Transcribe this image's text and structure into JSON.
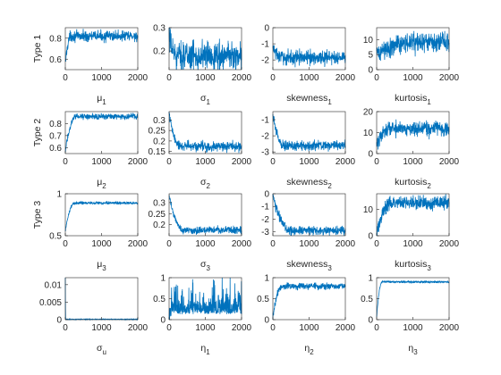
{
  "figure": {
    "trace_color": "#0072BD",
    "axes_color": "#262626"
  },
  "chart_data": [
    {
      "type": "line",
      "row_label": "Type 1",
      "xlabel": "μ",
      "xlabel_sub": "1",
      "x_ticks": [
        0,
        1000,
        2000
      ],
      "xlim": [
        0,
        2000
      ],
      "ylim": [
        0.5,
        0.9
      ],
      "y_ticks": [
        0.6,
        0.8
      ],
      "y_tick_labels": [
        "0.6",
        "0.8"
      ],
      "trace": {
        "start": 0.55,
        "level": 0.82,
        "burn_in": 150,
        "noise": 0.025
      }
    },
    {
      "type": "line",
      "xlabel": "σ",
      "xlabel_sub": "1",
      "x_ticks": [
        0,
        1000,
        2000
      ],
      "xlim": [
        0,
        2000
      ],
      "ylim": [
        0.12,
        0.3
      ],
      "y_ticks": [
        0.2,
        0.3
      ],
      "y_tick_labels": [
        "0.2",
        "0.3"
      ],
      "trace": {
        "start": 0.25,
        "level": 0.18,
        "burn_in": 250,
        "noise": 0.03
      }
    },
    {
      "type": "line",
      "xlabel": "skewness",
      "xlabel_sub": "1",
      "x_ticks": [
        0,
        1000,
        2000
      ],
      "xlim": [
        0,
        2000
      ],
      "ylim": [
        -2.6,
        0
      ],
      "y_ticks": [
        -2,
        -1,
        0
      ],
      "y_tick_labels": [
        "-2",
        "-1",
        "0"
      ],
      "trace": {
        "start": -1.2,
        "level": -1.85,
        "burn_in": 250,
        "noise": 0.22
      }
    },
    {
      "type": "line",
      "xlabel": "kurtosis",
      "xlabel_sub": "1",
      "x_ticks": [
        0,
        1000,
        2000
      ],
      "xlim": [
        0,
        2000
      ],
      "ylim": [
        0,
        14
      ],
      "y_ticks": [
        0,
        5,
        10
      ],
      "y_tick_labels": [
        "0",
        "5",
        "10"
      ],
      "trace": {
        "start": 5,
        "level": 9,
        "burn_in": 1000,
        "noise": 1.6
      }
    },
    {
      "type": "line",
      "row_label": "Type 2",
      "xlabel": "μ",
      "xlabel_sub": "2",
      "x_ticks": [
        0,
        1000,
        2000
      ],
      "xlim": [
        0,
        2000
      ],
      "ylim": [
        0.55,
        0.9
      ],
      "y_ticks": [
        0.6,
        0.7,
        0.8
      ],
      "y_tick_labels": [
        "0.6",
        "0.7",
        "0.8"
      ],
      "trace": {
        "start": 0.57,
        "level": 0.86,
        "burn_in": 300,
        "noise": 0.012
      }
    },
    {
      "type": "line",
      "xlabel": "σ",
      "xlabel_sub": "2",
      "x_ticks": [
        0,
        1000,
        2000
      ],
      "xlim": [
        0,
        2000
      ],
      "ylim": [
        0.14,
        0.34
      ],
      "y_ticks": [
        0.15,
        0.2,
        0.25,
        0.3
      ],
      "y_tick_labels": [
        "0.15",
        "0.2",
        "0.25",
        "0.3"
      ],
      "trace": {
        "start": 0.33,
        "level": 0.175,
        "burn_in": 300,
        "noise": 0.012
      }
    },
    {
      "type": "line",
      "xlabel": "skewness",
      "xlabel_sub": "2",
      "x_ticks": [
        0,
        1000,
        2000
      ],
      "xlim": [
        0,
        2000
      ],
      "ylim": [
        -3.1,
        -0.5
      ],
      "y_ticks": [
        -3,
        -2,
        -1
      ],
      "y_tick_labels": [
        "-3",
        "-2",
        "-1"
      ],
      "trace": {
        "start": -0.7,
        "level": -2.6,
        "burn_in": 300,
        "noise": 0.15
      }
    },
    {
      "type": "line",
      "xlabel": "kurtosis",
      "xlabel_sub": "2",
      "x_ticks": [
        0,
        1000,
        2000
      ],
      "xlim": [
        0,
        2000
      ],
      "ylim": [
        0,
        20
      ],
      "y_ticks": [
        0,
        10,
        20
      ],
      "y_tick_labels": [
        "0",
        "10",
        "20"
      ],
      "trace": {
        "start": 4,
        "level": 12,
        "burn_in": 350,
        "noise": 1.8
      }
    },
    {
      "type": "line",
      "row_label": "Type 3",
      "xlabel": "μ",
      "xlabel_sub": "3",
      "x_ticks": [
        0,
        1000,
        2000
      ],
      "xlim": [
        0,
        2000
      ],
      "ylim": [
        0.5,
        1
      ],
      "y_ticks": [
        0.5,
        1
      ],
      "y_tick_labels": [
        "0.5",
        "1"
      ],
      "trace": {
        "start": 0.55,
        "level": 0.89,
        "burn_in": 250,
        "noise": 0.008
      }
    },
    {
      "type": "line",
      "xlabel": "σ",
      "xlabel_sub": "3",
      "x_ticks": [
        0,
        1000,
        2000
      ],
      "xlim": [
        0,
        2000
      ],
      "ylim": [
        0.15,
        0.34
      ],
      "y_ticks": [
        0.2,
        0.25,
        0.3
      ],
      "y_tick_labels": [
        "0.2",
        "0.25",
        "0.3"
      ],
      "trace": {
        "start": 0.33,
        "level": 0.175,
        "burn_in": 400,
        "noise": 0.008
      }
    },
    {
      "type": "line",
      "xlabel": "skewness",
      "xlabel_sub": "3",
      "x_ticks": [
        0,
        1000,
        2000
      ],
      "xlim": [
        0,
        2000
      ],
      "ylim": [
        -3.3,
        0
      ],
      "y_ticks": [
        -3,
        -2,
        -1,
        0
      ],
      "y_tick_labels": [
        "-3",
        "-2",
        "-1",
        "0"
      ],
      "trace": {
        "start": -0.2,
        "level": -2.9,
        "burn_in": 500,
        "noise": 0.18
      }
    },
    {
      "type": "line",
      "xlabel": "kurtosis",
      "xlabel_sub": "3",
      "x_ticks": [
        0,
        1000,
        2000
      ],
      "xlim": [
        0,
        2000
      ],
      "ylim": [
        0,
        16
      ],
      "y_ticks": [
        0,
        10
      ],
      "y_tick_labels": [
        "0",
        "10"
      ],
      "trace": {
        "start": 1,
        "level": 12.5,
        "burn_in": 400,
        "noise": 1.3
      }
    },
    {
      "type": "line",
      "xlabel": "σ",
      "xlabel_sub": "u",
      "x_ticks": [
        0,
        1000,
        2000
      ],
      "xlim": [
        0,
        2000
      ],
      "ylim": [
        0,
        0.012
      ],
      "y_ticks": [
        0,
        0.005,
        0.01
      ],
      "y_tick_labels": [
        "0",
        "0.005",
        "0.01"
      ],
      "trace": {
        "start": 0.012,
        "level": 0.0001,
        "burn_in": 10,
        "noise": 5e-05
      }
    },
    {
      "type": "line",
      "xlabel": "η",
      "xlabel_sub": "1",
      "x_ticks": [
        0,
        1000,
        2000
      ],
      "xlim": [
        0,
        2000
      ],
      "ylim": [
        0,
        1
      ],
      "y_ticks": [
        0,
        0.5,
        1
      ],
      "y_tick_labels": [
        "0",
        "0.5",
        "1"
      ],
      "trace": {
        "start": 0.05,
        "level": 0.2,
        "burn_in": 150,
        "noise": 0.18,
        "spiky": true
      }
    },
    {
      "type": "line",
      "xlabel": "η",
      "xlabel_sub": "2",
      "x_ticks": [
        0,
        1000,
        2000
      ],
      "xlim": [
        0,
        2000
      ],
      "ylim": [
        0,
        1
      ],
      "y_ticks": [
        0,
        0.5,
        1
      ],
      "y_tick_labels": [
        "0",
        "0.5",
        "1"
      ],
      "trace": {
        "start": 0.05,
        "level": 0.8,
        "burn_in": 250,
        "noise": 0.04
      }
    },
    {
      "type": "line",
      "xlabel": "η",
      "xlabel_sub": "3",
      "x_ticks": [
        0,
        1000,
        2000
      ],
      "xlim": [
        0,
        2000
      ],
      "ylim": [
        0,
        1
      ],
      "y_ticks": [
        0,
        0.5,
        1
      ],
      "y_tick_labels": [
        "0",
        "0.5",
        "1"
      ],
      "trace": {
        "start": 0.05,
        "level": 0.9,
        "burn_in": 150,
        "noise": 0.012
      }
    }
  ]
}
